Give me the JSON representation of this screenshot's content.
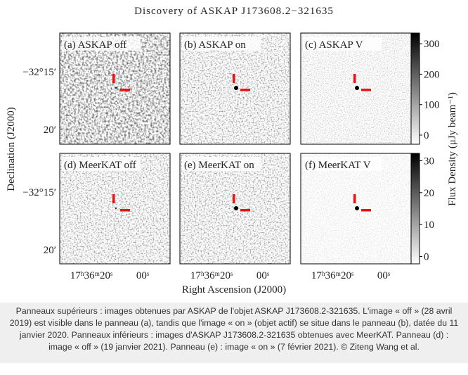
{
  "figure": {
    "title": "Discovery of ASKAP J173608.2−321635",
    "panels": [
      "(a) ASKAP off",
      "(b) ASKAP on",
      "(c) ASKAP V",
      "(d) MeerKAT off",
      "(e) MeerKAT on",
      "(f) MeerKAT V"
    ],
    "y_axis_label": "Declination (J2000)",
    "y_tick_labels": [
      "−32°15′",
      "20′"
    ],
    "x_axis_label": "Right Ascension (J2000)",
    "x_tick_labels": [
      "17ʰ36ᵐ20ˢ",
      "00ˢ"
    ],
    "colorbar_label": "Flux Density (μJy beam⁻¹)",
    "colorbar_top": {
      "lim": [
        -30,
        335
      ],
      "ticks": [
        0,
        100,
        200,
        300
      ]
    },
    "colorbar_bottom": {
      "lim": [
        -2.3,
        32.3
      ],
      "ticks": [
        0,
        10,
        20,
        30
      ]
    }
  },
  "caption": "Panneaux supérieurs : images obtenues par ASKAP de l'objet ASKAP J173608.2-321635. L'image « off » (28 avril 2019) est visible dans le panneau (a), tandis que l'image « on » (objet actif) se situe dans le panneau (b), datée du 11 janvier 2020. Panneaux inférieurs : images d'ASKAP J173608.2-321635 obtenues avec MeerKAT. Panneau (d) : image « off » (19 janvier 2021). Panneau (e) : image « on » (7 février 2021). © Ziteng Wang et al."
}
